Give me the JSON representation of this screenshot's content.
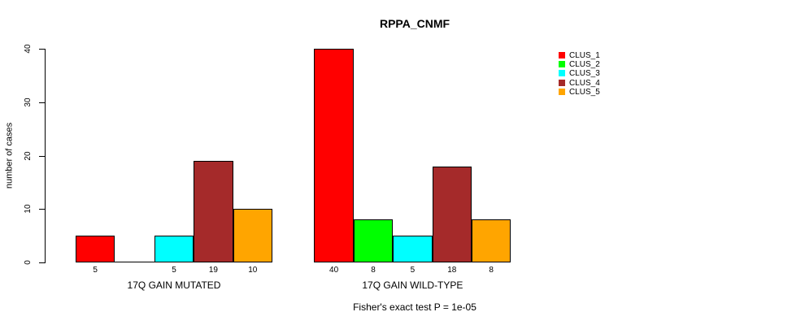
{
  "title": "RPPA_CNMF",
  "chart_data": {
    "type": "bar",
    "title": "RPPA_CNMF",
    "ylabel": "number of cases",
    "xlabel": "",
    "ylim": [
      0,
      40
    ],
    "yticks": [
      0,
      10,
      20,
      30,
      40
    ],
    "grid": false,
    "legend_position": "right",
    "bar_value_labels_shown": true,
    "categories": [
      "17Q GAIN MUTATED",
      "17Q GAIN WILD-TYPE"
    ],
    "series": [
      {
        "name": "CLUS_1",
        "color": "#ff0000",
        "values": [
          5,
          40
        ]
      },
      {
        "name": "CLUS_2",
        "color": "#00ff00",
        "values": [
          0,
          8
        ]
      },
      {
        "name": "CLUS_3",
        "color": "#00ffff",
        "values": [
          5,
          5
        ]
      },
      {
        "name": "CLUS_4",
        "color": "#a52a2a",
        "values": [
          19,
          18
        ]
      },
      {
        "name": "CLUS_5",
        "color": "#ffa500",
        "values": [
          10,
          8
        ]
      }
    ],
    "annotation": "Fisher's exact test P = 1e-05"
  }
}
